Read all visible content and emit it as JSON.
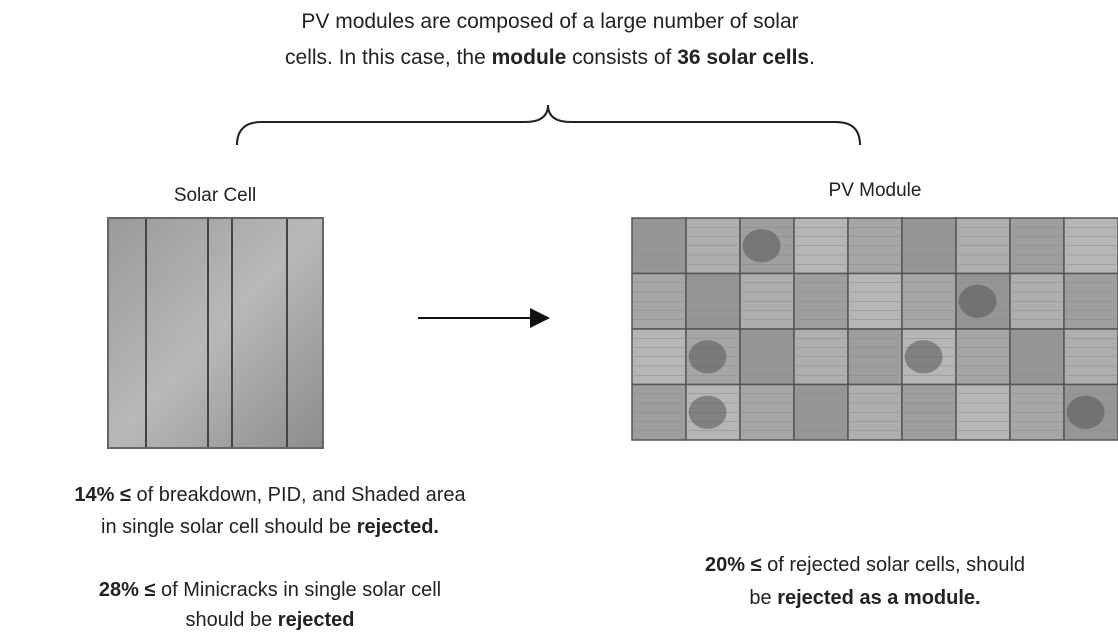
{
  "header": {
    "line1": "PV modules are composed of a large number of solar",
    "line2": [
      "cells. In this case, the ",
      "module",
      " consists of ",
      "36 solar cells",
      "."
    ]
  },
  "cell": {
    "label": "Solar Cell",
    "rule1_line1": [
      "14% ≤",
      " of breakdown, PID, and Shaded area"
    ],
    "rule1_line2": [
      "in single solar cell should be ",
      "rejected."
    ],
    "rule2_line1": [
      "28% ≤",
      " of Minicracks in single solar cell"
    ],
    "rule2_line2": [
      "should be ",
      "rejected"
    ]
  },
  "module": {
    "label": "PV Module",
    "rule_line1": [
      "20% ≤",
      " of rejected solar cells, should"
    ],
    "rule_line2": [
      "be ",
      "rejected as a module."
    ]
  }
}
